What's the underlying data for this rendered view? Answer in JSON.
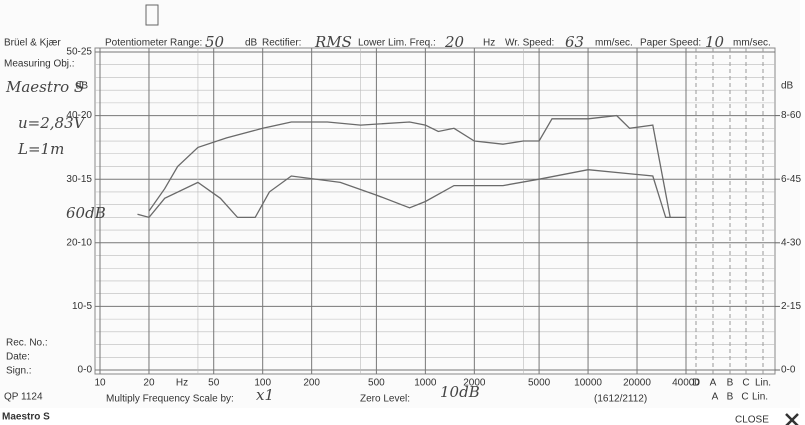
{
  "header": {
    "brand": "Brüel & Kjær",
    "pot_label": "Potentiometer Range:",
    "pot_value": "50",
    "pot_unit": "dB",
    "rect_label": "Rectifier:",
    "rect_value": "RMS",
    "llf_label": "Lower Lim. Freq.:",
    "llf_value": "20",
    "llf_unit": "Hz",
    "wr_label": "Wr. Speed:",
    "wr_value": "63",
    "wr_unit": "mm/sec.",
    "paper_label": "Paper Speed:",
    "paper_value": "10",
    "paper_unit": "mm/sec."
  },
  "left_notes": {
    "measuring": "Measuring Obj.:",
    "object": "Maestro S",
    "voltage": "u=2,83V",
    "distance": "L=1m",
    "level": "60dB",
    "rec": "Rec. No.:",
    "date": "Date:",
    "sign": "Sign.:",
    "code": "QP 1124"
  },
  "footer": {
    "multiply_label": "Multiply Frequency Scale by:",
    "multiply_value": "x1",
    "zero_label": "Zero Level:",
    "zero_value": "10dB",
    "ref": "(1612/2112)",
    "weighting_row1": [
      "D",
      "A",
      "B",
      "C",
      "Lin."
    ],
    "weighting_row2": [
      "A",
      "B",
      "C",
      "Lin."
    ]
  },
  "caption": {
    "title": "Maestro S",
    "close": "CLOSE"
  },
  "chart_data": {
    "type": "line",
    "x_label": "Hz",
    "y_unit": "dB",
    "x_scale": "log",
    "xlim": [
      10,
      40000
    ],
    "xticks": [
      10,
      20,
      50,
      100,
      200,
      500,
      1000,
      2000,
      5000,
      10000,
      20000,
      40000
    ],
    "ylim": [
      0,
      50
    ],
    "yticks": [
      {
        "value": 0,
        "label": "0-0"
      },
      {
        "value": 10,
        "label": "10-5"
      },
      {
        "value": 20,
        "label": "20-10"
      },
      {
        "value": 30,
        "label": "30-15"
      },
      {
        "value": 40,
        "label": "40-20"
      },
      {
        "value": 50,
        "label": "50-25"
      }
    ],
    "y2lim": [
      0,
      75
    ],
    "y2ticks": [
      {
        "value": 0,
        "label": "0-0"
      },
      {
        "value": 15,
        "label": "2-15"
      },
      {
        "value": 30,
        "label": "4-30"
      },
      {
        "value": 45,
        "label": "6-45"
      },
      {
        "value": 60,
        "label": "8-60"
      }
    ],
    "grid": true,
    "series": [
      {
        "color": "#6a6a6a",
        "x": [
          20,
          25,
          30,
          40,
          60,
          100,
          150,
          250,
          400,
          800,
          1000,
          1200,
          1500,
          2000,
          3000,
          4000,
          5000,
          6000,
          10000,
          15000,
          18000,
          25000,
          32000
        ],
        "values": [
          25,
          28.5,
          32,
          35,
          36.5,
          38,
          39,
          39,
          38.5,
          39,
          38.5,
          37.5,
          38,
          36,
          35.5,
          36,
          36,
          39.5,
          39.5,
          40,
          38,
          38.5,
          24
        ]
      },
      {
        "color": "#6a6a6a",
        "x": [
          17,
          20,
          25,
          40,
          55,
          70,
          90,
          110,
          150,
          300,
          500,
          800,
          1000,
          1500,
          3000,
          5000,
          10000,
          25000,
          30000,
          40000
        ],
        "values": [
          24.5,
          24,
          27,
          29.5,
          27,
          24,
          24,
          28,
          30.5,
          29.5,
          27.5,
          25.5,
          26.5,
          29,
          29,
          30,
          31.5,
          30.5,
          24,
          24
        ]
      }
    ]
  }
}
